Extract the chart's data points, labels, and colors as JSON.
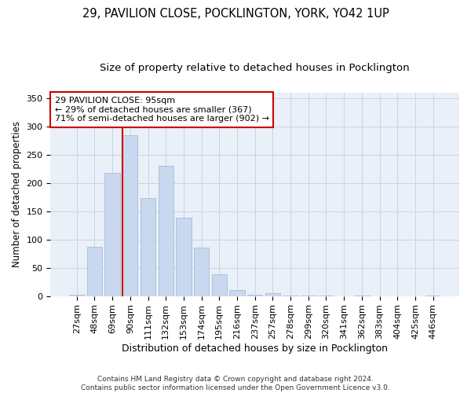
{
  "title": "29, PAVILION CLOSE, POCKLINGTON, YORK, YO42 1UP",
  "subtitle": "Size of property relative to detached houses in Pocklington",
  "xlabel": "Distribution of detached houses by size in Pocklington",
  "ylabel": "Number of detached properties",
  "categories": [
    "27sqm",
    "48sqm",
    "69sqm",
    "90sqm",
    "111sqm",
    "132sqm",
    "153sqm",
    "174sqm",
    "195sqm",
    "216sqm",
    "237sqm",
    "257sqm",
    "278sqm",
    "299sqm",
    "320sqm",
    "341sqm",
    "362sqm",
    "383sqm",
    "404sqm",
    "425sqm",
    "446sqm"
  ],
  "values": [
    2,
    87,
    218,
    284,
    174,
    231,
    138,
    85,
    39,
    10,
    2,
    5,
    1,
    1,
    1,
    0,
    1,
    0,
    0,
    0,
    1
  ],
  "bar_color": "#c8d8ee",
  "bar_edgecolor": "#a8bcd8",
  "redline_index": 3,
  "annotation_text": "29 PAVILION CLOSE: 95sqm\n← 29% of detached houses are smaller (367)\n71% of semi-detached houses are larger (902) →",
  "annotation_box_color": "#ffffff",
  "annotation_box_edgecolor": "#cc0000",
  "redline_color": "#cc0000",
  "ylim": [
    0,
    360
  ],
  "yticks": [
    0,
    50,
    100,
    150,
    200,
    250,
    300,
    350
  ],
  "grid_color": "#c8d4e8",
  "background_color": "#eaf0f8",
  "footer": "Contains HM Land Registry data © Crown copyright and database right 2024.\nContains public sector information licensed under the Open Government Licence v3.0.",
  "title_fontsize": 10.5,
  "subtitle_fontsize": 9.5,
  "xlabel_fontsize": 9,
  "ylabel_fontsize": 8.5,
  "tick_fontsize": 8,
  "footer_fontsize": 6.5
}
